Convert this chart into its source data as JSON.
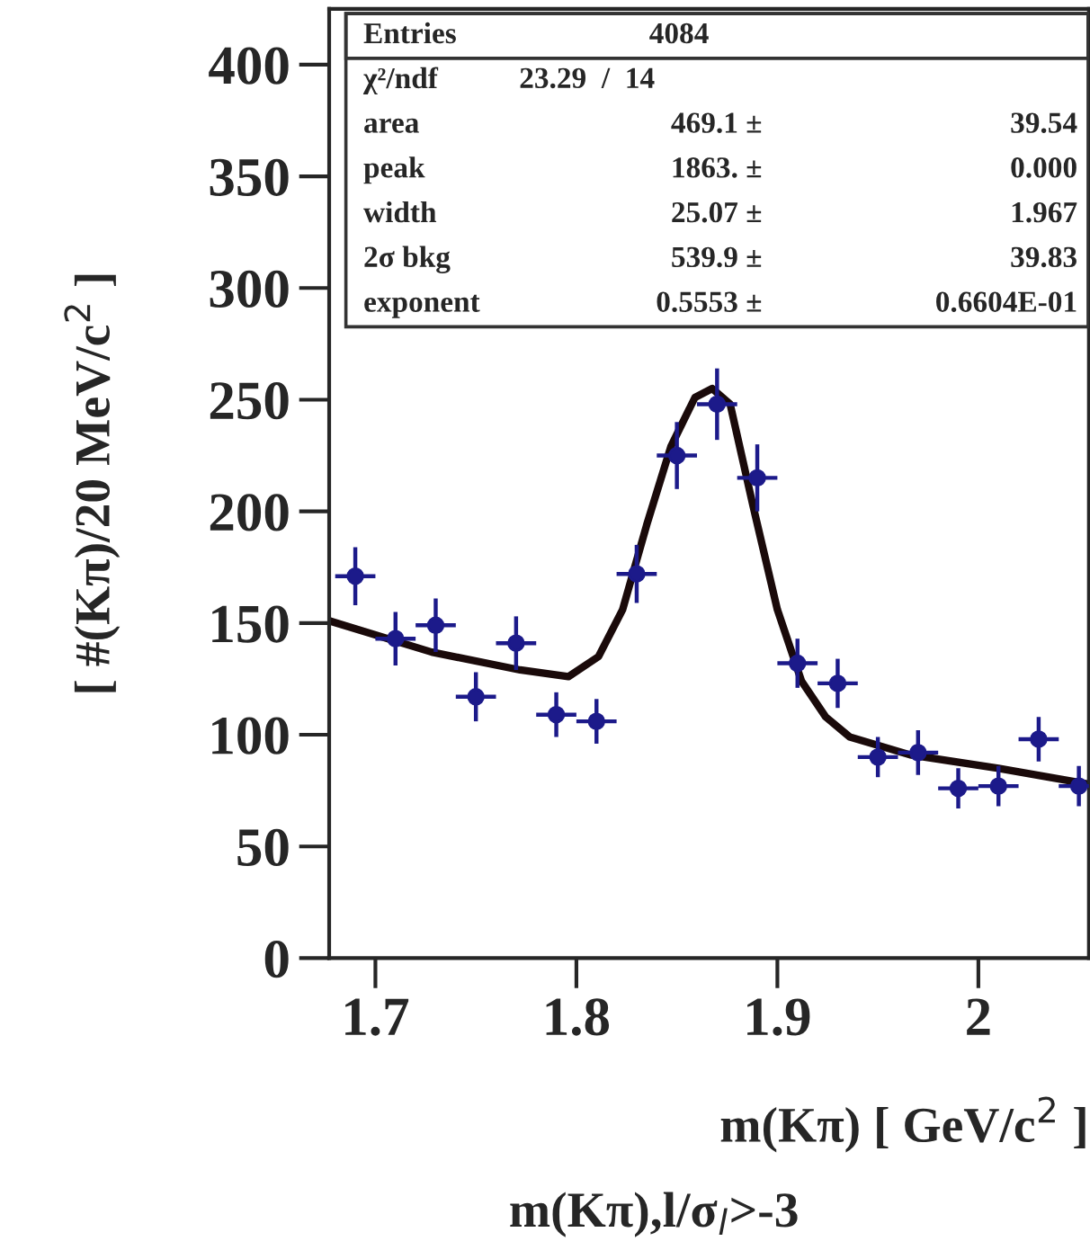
{
  "chart_data": {
    "type": "scatter",
    "xlabel": "m(Kπ) [ GeV/c$^{2}$ ]",
    "ylabel": "[ #(Kπ)/20 MeV/c$^{2}$ ]",
    "xlim": [
      1.677,
      2.055
    ],
    "xticks": [
      1.7,
      1.8,
      1.9,
      2
    ],
    "ylim": [
      0,
      425
    ],
    "yticks": [
      0,
      50,
      100,
      150,
      200,
      250,
      300,
      350,
      400
    ],
    "grid": false,
    "legend": false,
    "series": [
      {
        "type": "scatter",
        "color": "#1c1a8a",
        "marker": "circle",
        "x": [
          1.69,
          1.71,
          1.73,
          1.75,
          1.77,
          1.79,
          1.81,
          1.83,
          1.85,
          1.87,
          1.89,
          1.91,
          1.93,
          1.95,
          1.97,
          1.99,
          2.01,
          2.03,
          2.05
        ],
        "values": [
          171,
          143,
          149,
          117,
          141,
          109,
          106,
          172,
          225,
          248,
          215,
          132,
          123,
          90,
          92,
          76,
          77,
          98,
          77
        ],
        "errors": [
          13,
          12,
          12,
          11,
          12,
          10,
          10,
          13,
          15,
          16,
          15,
          11,
          11,
          9,
          10,
          9,
          9,
          10,
          9
        ],
        "xerrors": [
          0.01,
          0.01,
          0.01,
          0.01,
          0.01,
          0.01,
          0.01,
          0.01,
          0.01,
          0.01,
          0.01,
          0.01,
          0.01,
          0.01,
          0.01,
          0.01,
          0.01,
          0.01,
          0.01
        ]
      },
      {
        "type": "line",
        "color": "#1a0a0a",
        "line_style": "solid",
        "x": [
          1.677,
          1.728,
          1.772,
          1.796,
          1.811,
          1.823,
          1.835,
          1.847,
          1.859,
          1.8676,
          1.8765,
          1.888,
          1.9,
          1.912,
          1.924,
          1.936,
          1.966,
          2.01,
          2.054
        ],
        "values": [
          151,
          137,
          129,
          126,
          135,
          156,
          194,
          229,
          251,
          255,
          248,
          202,
          156,
          124,
          108,
          99,
          91,
          85,
          78
        ]
      }
    ],
    "annotations": [
      "Entries\t4084",
      "χ²/ndf\t23.29  /  14",
      "area\t469.1 ±\t39.54",
      "peak\t1863. ±\t0.000",
      "width\t25.07 ±\t1.967",
      "2σ bkg\t539.9 ±\t39.83",
      "exponent\t0.5553 ±\t0.6604E-01",
      "m(Kπ),l/σ$_{l}$>-3"
    ]
  }
}
